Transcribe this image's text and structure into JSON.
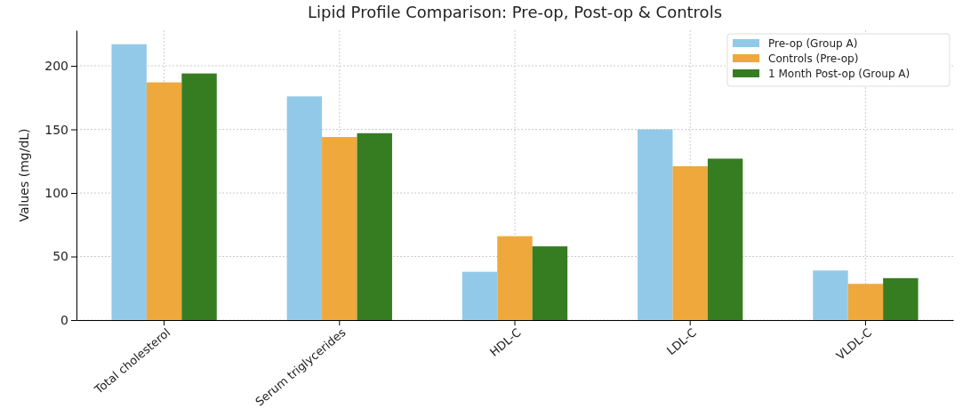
{
  "chart_data": {
    "type": "bar",
    "title": "Lipid Profile Comparison: Pre-op, Post-op & Controls",
    "ylabel": "Values (mg/dL)",
    "categories": [
      "Total cholesterol",
      "Serum triglycerides",
      "HDL-C",
      "LDL-C",
      "VLDL-C"
    ],
    "series": [
      {
        "name": "Pre-op (Group A)",
        "color": "#93c9e8",
        "values": [
          217,
          176,
          38,
          150,
          39
        ]
      },
      {
        "name": "Controls (Pre-op)",
        "color": "#eea83c",
        "values": [
          187,
          144,
          66,
          121,
          28.5
        ]
      },
      {
        "name": "1 Month Post-op (Group A)",
        "color": "#367d22",
        "values": [
          194,
          147,
          58,
          127,
          33
        ]
      }
    ],
    "ylim": [
      0,
      228
    ],
    "yticks": [
      0,
      50,
      100,
      150,
      200
    ],
    "grid": true,
    "legend": "top right"
  }
}
